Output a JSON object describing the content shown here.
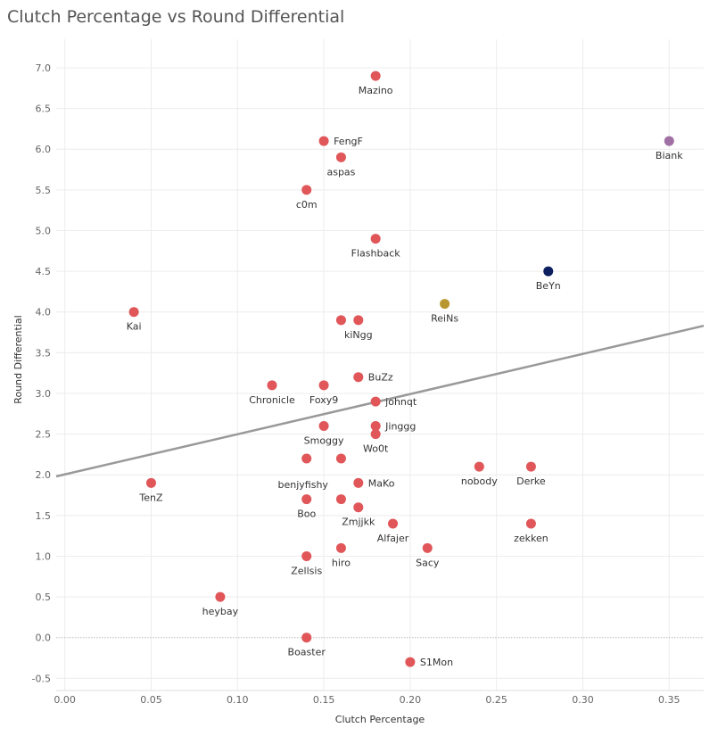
{
  "chart_data": {
    "type": "scatter",
    "title": "Clutch Percentage vs Round Differential",
    "xlabel": "Clutch Percentage",
    "ylabel": "Round Differential",
    "xlim": [
      -0.005,
      0.37
    ],
    "ylim": [
      -0.65,
      7.35
    ],
    "xticks": [
      "0.00",
      "0.05",
      "0.10",
      "0.15",
      "0.20",
      "0.25",
      "0.30",
      "0.35"
    ],
    "yticks": [
      "-0.5",
      "0.0",
      "0.5",
      "1.0",
      "1.5",
      "2.0",
      "2.5",
      "3.0",
      "3.5",
      "4.0",
      "4.5",
      "5.0",
      "5.5",
      "6.0",
      "6.5",
      "7.0"
    ],
    "grid": true,
    "zero_line": true,
    "trendline": {
      "x": [
        -0.005,
        0.37
      ],
      "y": [
        1.98,
        3.83
      ]
    },
    "colors": {
      "default": "#e05659",
      "gold": "#b8972e",
      "navy": "#0c1f5e",
      "purple": "#a070a5",
      "trend": "#999999",
      "grid": "#ececec"
    },
    "points": [
      {
        "x": 0.18,
        "y": 6.9,
        "label": "Mazino",
        "color": "default",
        "pos": "below"
      },
      {
        "x": 0.15,
        "y": 6.1,
        "label": "FengF",
        "color": "default",
        "pos": "right"
      },
      {
        "x": 0.16,
        "y": 5.9,
        "label": "aspas",
        "color": "default",
        "pos": "below"
      },
      {
        "x": 0.35,
        "y": 6.1,
        "label": "Biank",
        "color": "purple",
        "pos": "below"
      },
      {
        "x": 0.14,
        "y": 5.5,
        "label": "c0m",
        "color": "default",
        "pos": "below"
      },
      {
        "x": 0.18,
        "y": 4.9,
        "label": "Flashback",
        "color": "default",
        "pos": "below"
      },
      {
        "x": 0.28,
        "y": 4.5,
        "label": "BeYn",
        "color": "navy",
        "pos": "below"
      },
      {
        "x": 0.04,
        "y": 4.0,
        "label": "Kai",
        "color": "default",
        "pos": "below"
      },
      {
        "x": 0.22,
        "y": 4.1,
        "label": "ReiNs",
        "color": "gold",
        "pos": "below"
      },
      {
        "x": 0.16,
        "y": 3.9,
        "label": "",
        "color": "default",
        "pos": "none"
      },
      {
        "x": 0.17,
        "y": 3.9,
        "label": "kiNgg",
        "color": "default",
        "pos": "belowleft"
      },
      {
        "x": 0.17,
        "y": 3.2,
        "label": "BuZz",
        "color": "default",
        "pos": "right"
      },
      {
        "x": 0.12,
        "y": 3.1,
        "label": "Chronicle",
        "color": "default",
        "pos": "below"
      },
      {
        "x": 0.15,
        "y": 3.1,
        "label": "Foxy9",
        "color": "default",
        "pos": "below"
      },
      {
        "x": 0.18,
        "y": 2.9,
        "label": "johnqt",
        "color": "default",
        "pos": "right"
      },
      {
        "x": 0.15,
        "y": 2.6,
        "label": "Smoggy",
        "color": "default",
        "pos": "below"
      },
      {
        "x": 0.18,
        "y": 2.6,
        "label": "Jinggg",
        "color": "default",
        "pos": "right"
      },
      {
        "x": 0.18,
        "y": 2.5,
        "label": "Wo0t",
        "color": "default",
        "pos": "below"
      },
      {
        "x": 0.14,
        "y": 2.2,
        "label": "benjyfishy",
        "color": "default",
        "pos": "belowright"
      },
      {
        "x": 0.16,
        "y": 2.2,
        "label": "",
        "color": "default",
        "pos": "none"
      },
      {
        "x": 0.05,
        "y": 1.9,
        "label": "TenZ",
        "color": "default",
        "pos": "belowleft"
      },
      {
        "x": 0.17,
        "y": 1.9,
        "label": "MaKo",
        "color": "default",
        "pos": "right"
      },
      {
        "x": 0.24,
        "y": 2.1,
        "label": "nobody",
        "color": "default",
        "pos": "below"
      },
      {
        "x": 0.27,
        "y": 2.1,
        "label": "Derke",
        "color": "default",
        "pos": "below"
      },
      {
        "x": 0.14,
        "y": 1.7,
        "label": "Boo",
        "color": "default",
        "pos": "below"
      },
      {
        "x": 0.16,
        "y": 1.7,
        "label": "",
        "color": "default",
        "pos": "none"
      },
      {
        "x": 0.17,
        "y": 1.6,
        "label": "Zmjjkk",
        "color": "default",
        "pos": "below"
      },
      {
        "x": 0.19,
        "y": 1.4,
        "label": "Alfajer",
        "color": "default",
        "pos": "below"
      },
      {
        "x": 0.27,
        "y": 1.4,
        "label": "zekken",
        "color": "default",
        "pos": "below"
      },
      {
        "x": 0.16,
        "y": 1.1,
        "label": "hiro",
        "color": "default",
        "pos": "below"
      },
      {
        "x": 0.21,
        "y": 1.1,
        "label": "Sacy",
        "color": "default",
        "pos": "below"
      },
      {
        "x": 0.14,
        "y": 1.0,
        "label": "Zellsis",
        "color": "default",
        "pos": "below"
      },
      {
        "x": 0.09,
        "y": 0.5,
        "label": "heybay",
        "color": "default",
        "pos": "below"
      },
      {
        "x": 0.14,
        "y": 0.0,
        "label": "Boaster",
        "color": "default",
        "pos": "below"
      },
      {
        "x": 0.2,
        "y": -0.3,
        "label": "S1Mon",
        "color": "default",
        "pos": "right"
      }
    ]
  }
}
